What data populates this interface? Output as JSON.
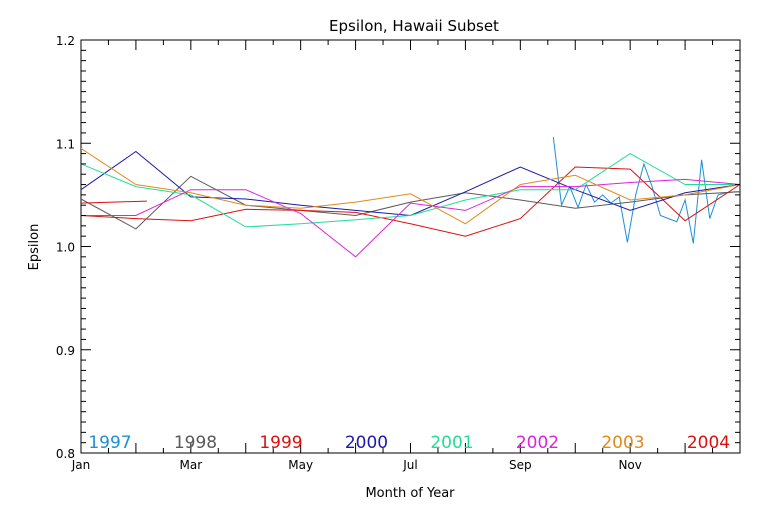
{
  "chart_data": {
    "type": "line",
    "title": "Epsilon, Hawaii Subset",
    "xlabel": "Month of Year",
    "ylabel": "Epsilon",
    "xlim": [
      1,
      13
    ],
    "ylim": [
      0.8,
      1.2
    ],
    "x_ticks": [
      {
        "value": 1,
        "label": "Jan"
      },
      {
        "value": 3,
        "label": "Mar"
      },
      {
        "value": 5,
        "label": "May"
      },
      {
        "value": 7,
        "label": "Jul"
      },
      {
        "value": 9,
        "label": "Sep"
      },
      {
        "value": 11,
        "label": "Nov"
      }
    ],
    "y_ticks": [
      {
        "value": 0.8,
        "label": "0.8"
      },
      {
        "value": 0.9,
        "label": "0.9"
      },
      {
        "value": 1.0,
        "label": "1.0"
      },
      {
        "value": 1.1,
        "label": "1.1"
      },
      {
        "value": 1.2,
        "label": "1.2"
      }
    ],
    "grid": false,
    "legend_position": "bottom, inside plot",
    "series": [
      {
        "name": "1997",
        "color": "#1e8fd6",
        "x": [
          9.6,
          9.75,
          9.9,
          10.05,
          10.2,
          10.35,
          10.5,
          10.65,
          10.8,
          10.95,
          11.1,
          11.25,
          11.4,
          11.55,
          11.7,
          11.85,
          12.0,
          12.15,
          12.3,
          12.45,
          12.6,
          12.75,
          12.9,
          13.0
        ],
        "y": [
          1.106,
          1.04,
          1.058,
          1.038,
          1.06,
          1.043,
          1.05,
          1.042,
          1.048,
          1.004,
          1.05,
          1.08,
          1.058,
          1.03,
          1.027,
          1.024,
          1.045,
          1.003,
          1.084,
          1.027,
          1.05,
          1.052,
          1.053,
          1.053
        ]
      },
      {
        "name": "1998",
        "color": "#5a5a5a",
        "x": [
          1,
          2,
          3,
          4,
          5,
          6,
          7,
          8,
          9,
          10,
          11,
          12,
          13
        ],
        "y": [
          1.046,
          1.017,
          1.068,
          1.04,
          1.035,
          1.03,
          1.043,
          1.052,
          1.045,
          1.037,
          1.043,
          1.05,
          1.053
        ]
      },
      {
        "name": "1999",
        "color": "#dd1010",
        "x": [
          1,
          2,
          3,
          4,
          5,
          6,
          7,
          8,
          9,
          10,
          11,
          12,
          13
        ],
        "y": [
          1.03,
          1.027,
          1.025,
          1.036,
          1.035,
          1.033,
          1.022,
          1.01,
          1.027,
          1.077,
          1.075,
          1.025,
          1.06
        ]
      },
      {
        "name": "2000",
        "color": "#1a1aaa",
        "x": [
          1,
          2,
          3,
          4,
          5,
          6,
          7,
          8,
          9,
          10,
          11,
          12,
          13
        ],
        "y": [
          1.055,
          1.092,
          1.048,
          1.046,
          1.04,
          1.035,
          1.03,
          1.053,
          1.077,
          1.055,
          1.035,
          1.052,
          1.06
        ]
      },
      {
        "name": "2001",
        "color": "#22dd99",
        "x": [
          1,
          2,
          3,
          4,
          5,
          6,
          7,
          8,
          9,
          10,
          11,
          12,
          13
        ],
        "y": [
          1.08,
          1.058,
          1.05,
          1.019,
          1.022,
          1.026,
          1.03,
          1.045,
          1.055,
          1.055,
          1.09,
          1.06,
          1.06
        ]
      },
      {
        "name": "2002",
        "color": "#dd22dd",
        "x": [
          1,
          2,
          3,
          4,
          5,
          6,
          7,
          8,
          9,
          10,
          11,
          12,
          13
        ],
        "y": [
          1.03,
          1.03,
          1.055,
          1.055,
          1.032,
          0.99,
          1.042,
          1.035,
          1.058,
          1.058,
          1.062,
          1.065,
          1.06
        ]
      },
      {
        "name": "2003",
        "color": "#e08a1a",
        "x": [
          1,
          2,
          3,
          4,
          5,
          6,
          7,
          8,
          9,
          10,
          11,
          12,
          13
        ],
        "y": [
          1.095,
          1.06,
          1.052,
          1.04,
          1.037,
          1.043,
          1.051,
          1.022,
          1.06,
          1.069,
          1.045,
          1.05,
          1.06
        ]
      },
      {
        "name": "2004",
        "color": "#dd1010",
        "x": [
          1,
          2.2
        ],
        "y": [
          1.042,
          1.044
        ]
      }
    ]
  }
}
